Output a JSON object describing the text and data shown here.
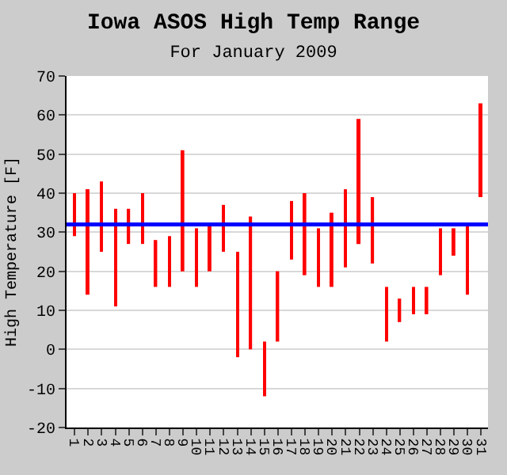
{
  "chart_data": {
    "type": "bar",
    "title": "Iowa ASOS High Temp Range",
    "subtitle": "For January 2009",
    "ylabel": "High Temperature [F]",
    "categories": [
      "1",
      "2",
      "3",
      "4",
      "5",
      "6",
      "7",
      "8",
      "9",
      "10",
      "11",
      "12",
      "13",
      "14",
      "15",
      "16",
      "17",
      "18",
      "19",
      "20",
      "21",
      "22",
      "23",
      "24",
      "25",
      "26",
      "27",
      "28",
      "29",
      "30",
      "31"
    ],
    "base": [
      29,
      14,
      25,
      11,
      27,
      27,
      16,
      16,
      20,
      16,
      20,
      25,
      -2,
      0,
      -12,
      2,
      23,
      19,
      16,
      16,
      21,
      27,
      22,
      2,
      7,
      9,
      9,
      19,
      24,
      14,
      39
    ],
    "values": [
      11,
      27,
      18,
      25,
      9,
      13,
      12,
      13,
      31,
      15,
      12,
      12,
      27,
      34,
      14,
      18,
      15,
      21,
      15,
      19,
      20,
      32,
      17,
      14,
      6,
      7,
      7,
      12,
      7,
      18,
      24
    ],
    "color": "#ff0000",
    "ylim": [
      -20,
      70
    ],
    "yticks": [
      -20,
      -10,
      0,
      10,
      20,
      30,
      40,
      50,
      60,
      70
    ],
    "grid": "y",
    "ref_lines": [
      {
        "axis": "y",
        "value": 32,
        "color": "#0000ff"
      }
    ]
  }
}
